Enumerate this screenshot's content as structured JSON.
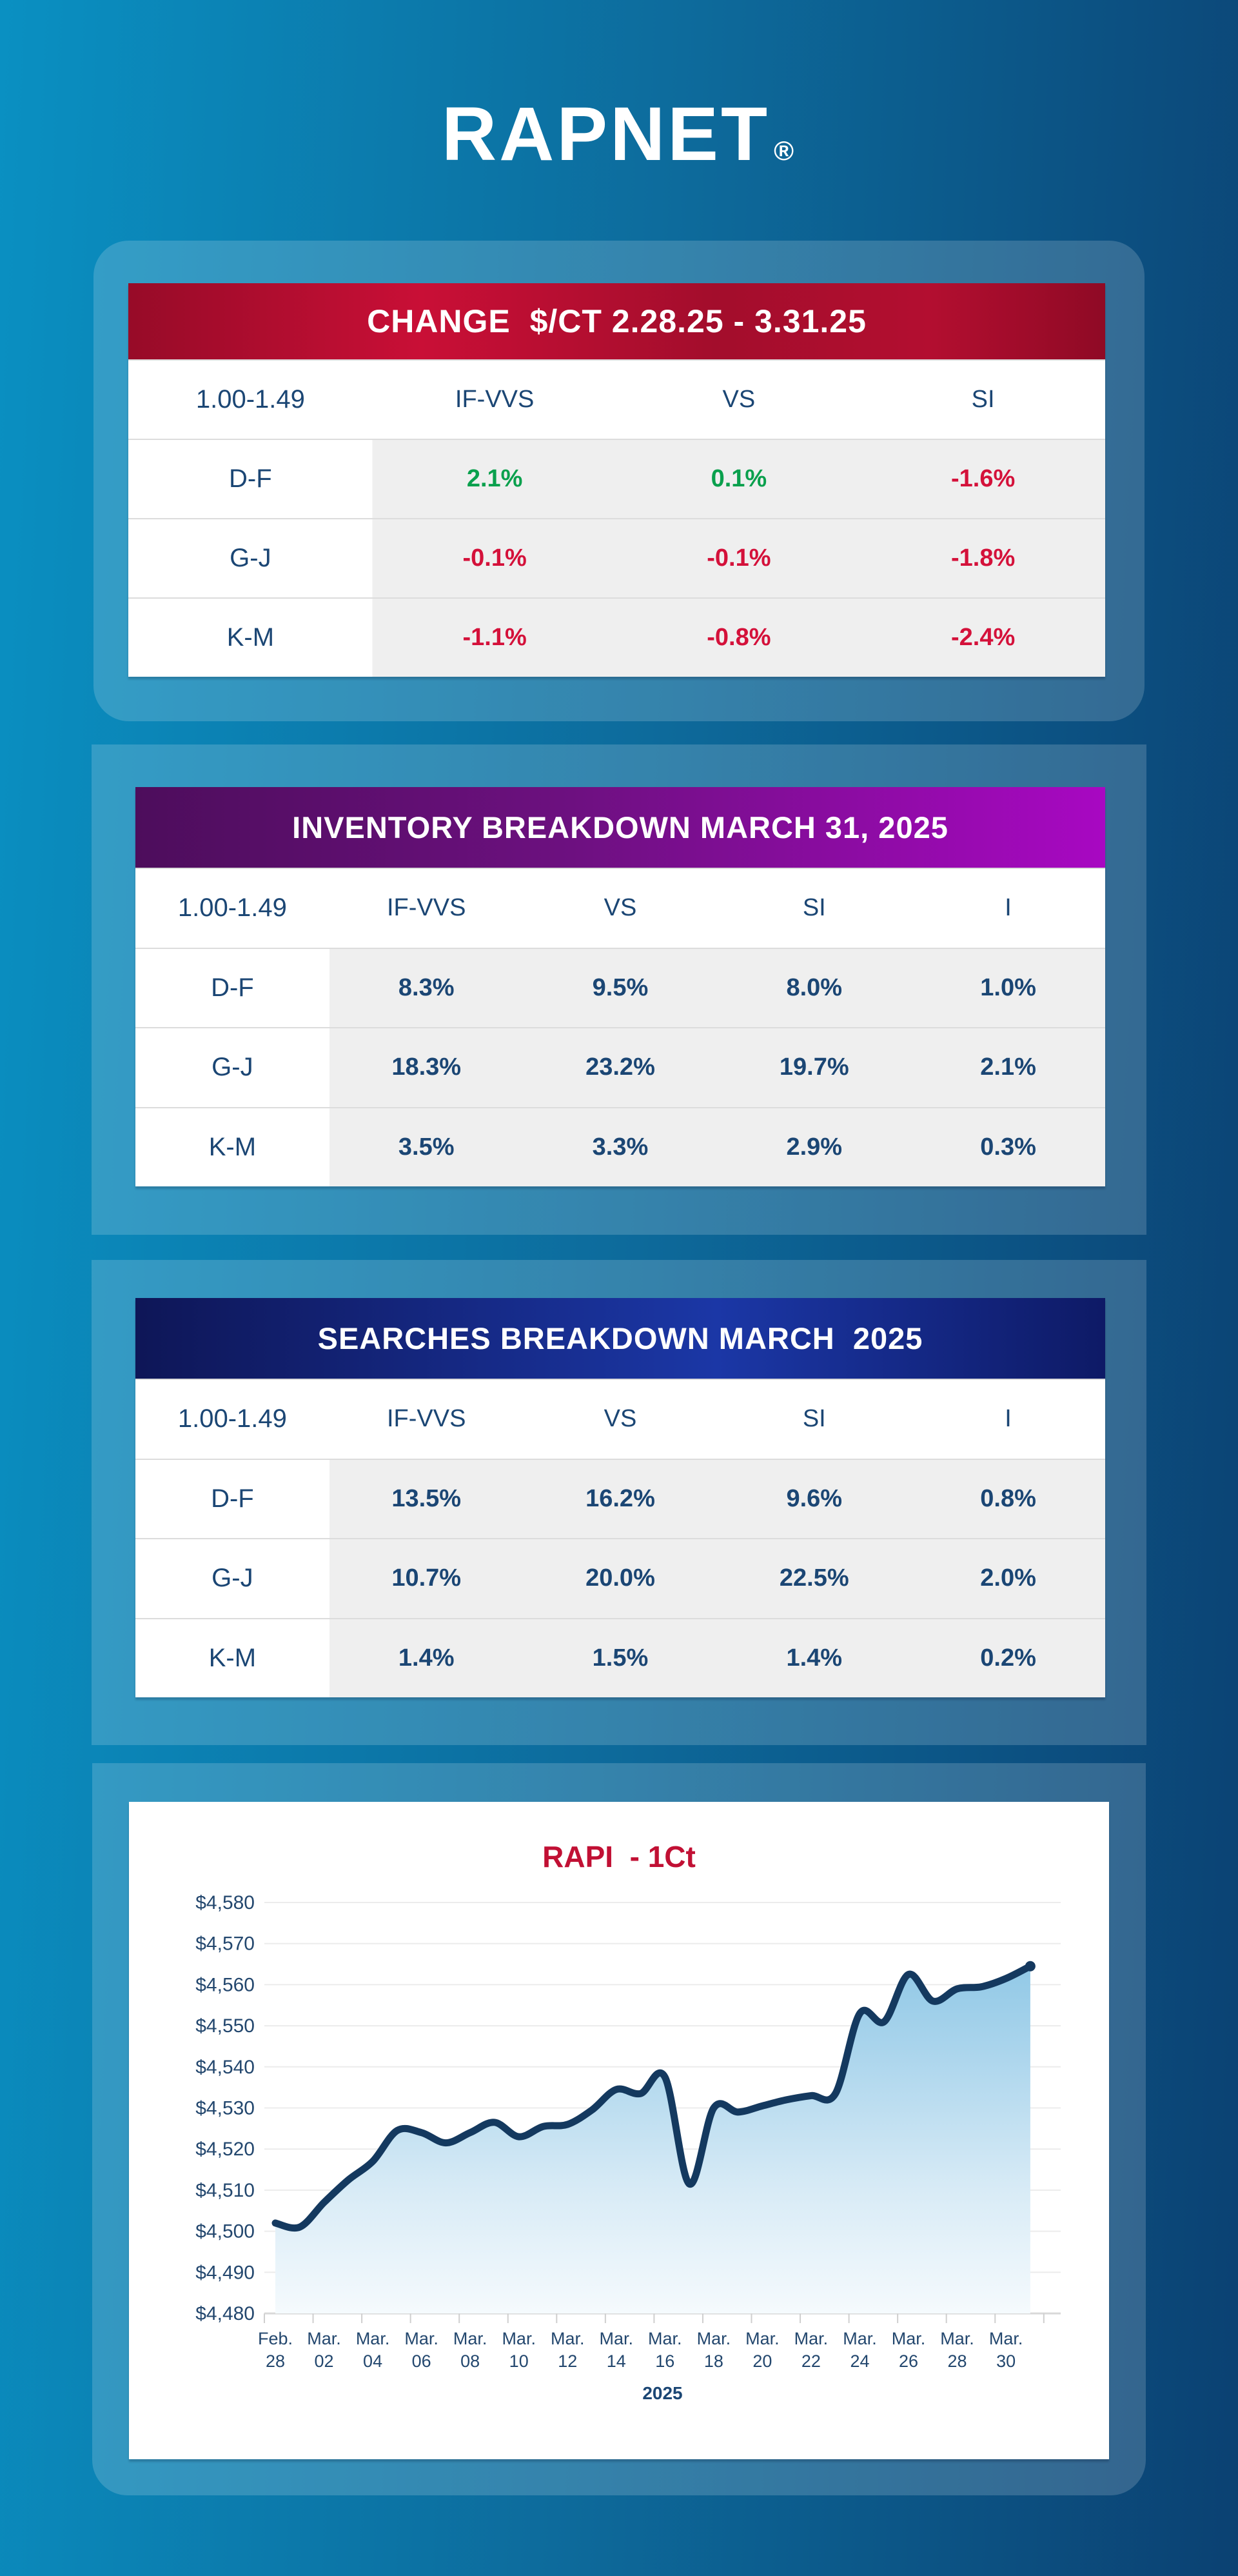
{
  "logo": {
    "text": "RAPNET",
    "reg": "®"
  },
  "palette": {
    "positive": "#0aa04d",
    "negative": "#d4113a",
    "navy": "#1b4674",
    "title_red": "#c11034",
    "line_navy": "#14395f"
  },
  "change_table": {
    "title": "CHANGE  $/CT 2.28.25 - 3.31.25",
    "row_header": "1.00-1.49",
    "columns": [
      "IF-VVS",
      "VS",
      "SI"
    ],
    "rows": [
      {
        "label": "D-F",
        "values": [
          "2.1%",
          "0.1%",
          "-1.6%"
        ],
        "trends": [
          "up",
          "up",
          "down"
        ]
      },
      {
        "label": "G-J",
        "values": [
          "-0.1%",
          "-0.1%",
          "-1.8%"
        ],
        "trends": [
          "down",
          "down",
          "down"
        ]
      },
      {
        "label": "K-M",
        "values": [
          "-1.1%",
          "-0.8%",
          "-2.4%"
        ],
        "trends": [
          "down",
          "down",
          "down"
        ]
      }
    ]
  },
  "inventory_table": {
    "title": "INVENTORY BREAKDOWN MARCH 31, 2025",
    "row_header": "1.00-1.49",
    "columns": [
      "IF-VVS",
      "VS",
      "SI",
      "I"
    ],
    "rows": [
      {
        "label": "D-F",
        "values": [
          "8.3%",
          "9.5%",
          "8.0%",
          "1.0%"
        ]
      },
      {
        "label": "G-J",
        "values": [
          "18.3%",
          "23.2%",
          "19.7%",
          "2.1%"
        ]
      },
      {
        "label": "K-M",
        "values": [
          "3.5%",
          "3.3%",
          "2.9%",
          "0.3%"
        ]
      }
    ]
  },
  "searches_table": {
    "title": "SEARCHES BREAKDOWN MARCH  2025",
    "row_header": "1.00-1.49",
    "columns": [
      "IF-VVS",
      "VS",
      "SI",
      "I"
    ],
    "rows": [
      {
        "label": "D-F",
        "values": [
          "13.5%",
          "16.2%",
          "9.6%",
          "0.8%"
        ]
      },
      {
        "label": "G-J",
        "values": [
          "10.7%",
          "20.0%",
          "22.5%",
          "2.0%"
        ]
      },
      {
        "label": "K-M",
        "values": [
          "1.4%",
          "1.5%",
          "1.4%",
          "0.2%"
        ]
      }
    ]
  },
  "chart_data": {
    "type": "area",
    "title": "RAPI  - 1Ct",
    "xlabel": "2025",
    "ylabel": "",
    "ylim": [
      4480,
      4580
    ],
    "grid": true,
    "x": [
      "Feb 28",
      "Mar 01",
      "Mar 02",
      "Mar 03",
      "Mar 04",
      "Mar 05",
      "Mar 06",
      "Mar 07",
      "Mar 08",
      "Mar 09",
      "Mar 10",
      "Mar 11",
      "Mar 12",
      "Mar 13",
      "Mar 14",
      "Mar 15",
      "Mar 16",
      "Mar 17",
      "Mar 18",
      "Mar 19",
      "Mar 20",
      "Mar 21",
      "Mar 22",
      "Mar 23",
      "Mar 24",
      "Mar 25",
      "Mar 26",
      "Mar 27",
      "Mar 28",
      "Mar 29",
      "Mar 30",
      "Mar 31"
    ],
    "values": [
      4502,
      4501,
      4507,
      4512.5,
      4517,
      4524.5,
      4524,
      4521.5,
      4524,
      4526.5,
      4523,
      4525.5,
      4526,
      4529.5,
      4534.5,
      4533.5,
      4537.5,
      4511.5,
      4530,
      4529,
      4530.5,
      4532,
      4533,
      4533.5,
      4553,
      4551,
      4562.5,
      4556,
      4559,
      4559.5,
      4561.5,
      4564.5
    ],
    "y_ticks": [
      "$4,580",
      "$4,570",
      "$4,560",
      "$4,550",
      "$4,540",
      "$4,530",
      "$4,520",
      "$4,510",
      "$4,500",
      "$4,490",
      "$4,480"
    ],
    "x_tick_labels": [
      {
        "l1": "Feb.",
        "l2": "28"
      },
      {
        "l1": "Mar.",
        "l2": "02"
      },
      {
        "l1": "Mar.",
        "l2": "04"
      },
      {
        "l1": "Mar.",
        "l2": "06"
      },
      {
        "l1": "Mar.",
        "l2": "08"
      },
      {
        "l1": "Mar.",
        "l2": "10"
      },
      {
        "l1": "Mar.",
        "l2": "12"
      },
      {
        "l1": "Mar.",
        "l2": "14"
      },
      {
        "l1": "Mar.",
        "l2": "16"
      },
      {
        "l1": "Mar.",
        "l2": "18"
      },
      {
        "l1": "Mar.",
        "l2": "20"
      },
      {
        "l1": "Mar.",
        "l2": "22"
      },
      {
        "l1": "Mar.",
        "l2": "24"
      },
      {
        "l1": "Mar.",
        "l2": "26"
      },
      {
        "l1": "Mar.",
        "l2": "28"
      },
      {
        "l1": "Mar.",
        "l2": "30"
      }
    ],
    "x_axis_secondary": "2025",
    "line_color": "#14395f",
    "fill_top": "#7fc0e2",
    "legend": "none"
  }
}
